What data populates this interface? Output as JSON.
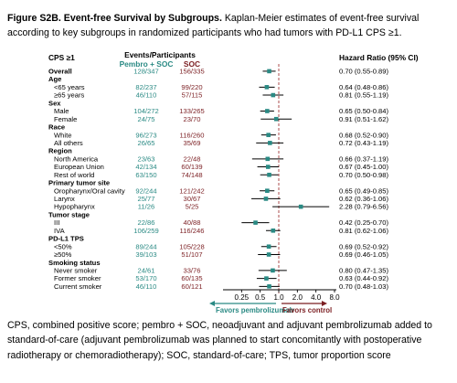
{
  "caption": {
    "title": "Figure S2B. Event-free Survival by Subgroups.",
    "text": "Kaplan-Meier estimates of event-free survival according to key subgroups in randomized participants who had tumors with PD-L1 CPS ≥1."
  },
  "colors": {
    "pembro": "#2a8a84",
    "soc": "#7b1e22",
    "marker": "#2a8a84",
    "ci_line": "#000000",
    "reference_line": "#a33a3a"
  },
  "chart_data": {
    "type": "forest",
    "header": {
      "subgroup": "CPS ≥1",
      "events_title": "Events/Participants",
      "arm1": "Pembro + SOC",
      "arm2": "SOC",
      "hr": "Hazard Ratio (95% CI)"
    },
    "x_axis": {
      "scale": "log",
      "ticks": [
        0.25,
        0.5,
        1.0,
        2.0,
        4.0,
        8.0
      ],
      "tick_labels": [
        "0.25",
        "0.5",
        "1.0",
        "2.0",
        "4.0",
        "8.0"
      ],
      "range": [
        0.125,
        8.0
      ],
      "reference": 1.0,
      "favors_left": "Favors pembrolizumab",
      "favors_right": "Favors control"
    },
    "rows": [
      {
        "label": "Overall",
        "header": true,
        "pembro": "128/347",
        "soc": "156/335",
        "hr_text": "0.70 (0.55-0.89)",
        "hr": 0.7,
        "lo": 0.55,
        "hi": 0.89
      },
      {
        "label": "Age",
        "header": true
      },
      {
        "label": "<65 years",
        "pembro": "82/237",
        "soc": "99/220",
        "hr_text": "0.64 (0.48-0.86)",
        "hr": 0.64,
        "lo": 0.48,
        "hi": 0.86
      },
      {
        "label": "≥65 years",
        "pembro": "46/110",
        "soc": "57/115",
        "hr_text": "0.81 (0.55-1.19)",
        "hr": 0.81,
        "lo": 0.55,
        "hi": 1.19
      },
      {
        "label": "Sex",
        "header": true
      },
      {
        "label": "Male",
        "pembro": "104/272",
        "soc": "133/265",
        "hr_text": "0.65 (0.50-0.84)",
        "hr": 0.65,
        "lo": 0.5,
        "hi": 0.84
      },
      {
        "label": "Female",
        "pembro": "24/75",
        "soc": "23/70",
        "hr_text": "0.91 (0.51-1.62)",
        "hr": 0.91,
        "lo": 0.51,
        "hi": 1.62
      },
      {
        "label": "Race",
        "header": true
      },
      {
        "label": "White",
        "pembro": "96/273",
        "soc": "116/260",
        "hr_text": "0.68 (0.52-0.90)",
        "hr": 0.68,
        "lo": 0.52,
        "hi": 0.9
      },
      {
        "label": "All others",
        "pembro": "26/65",
        "soc": "35/69",
        "hr_text": "0.72 (0.43-1.19)",
        "hr": 0.72,
        "lo": 0.43,
        "hi": 1.19
      },
      {
        "label": "Region",
        "header": true
      },
      {
        "label": "North America",
        "pembro": "23/63",
        "soc": "22/48",
        "hr_text": "0.66 (0.37-1.19)",
        "hr": 0.66,
        "lo": 0.37,
        "hi": 1.19
      },
      {
        "label": "European Union",
        "pembro": "42/134",
        "soc": "60/139",
        "hr_text": "0.67 (0.45-1.00)",
        "hr": 0.67,
        "lo": 0.45,
        "hi": 1.0
      },
      {
        "label": "Rest of world",
        "pembro": "63/150",
        "soc": "74/148",
        "hr_text": "0.70 (0.50-0.98)",
        "hr": 0.7,
        "lo": 0.5,
        "hi": 0.98
      },
      {
        "label": "Primary tumor site",
        "header": true
      },
      {
        "label": "Oropharynx/Oral cavity",
        "pembro": "92/244",
        "soc": "121/242",
        "hr_text": "0.65 (0.49-0.85)",
        "hr": 0.65,
        "lo": 0.49,
        "hi": 0.85
      },
      {
        "label": "Larynx",
        "pembro": "25/77",
        "soc": "30/67",
        "hr_text": "0.62 (0.36-1.06)",
        "hr": 0.62,
        "lo": 0.36,
        "hi": 1.06
      },
      {
        "label": "Hypopharynx",
        "pembro": "11/26",
        "soc": "5/25",
        "hr_text": "2.28 (0.79-6.56)",
        "hr": 2.28,
        "lo": 0.79,
        "hi": 6.56
      },
      {
        "label": "Tumor stage",
        "header": true
      },
      {
        "label": "III",
        "pembro": "22/86",
        "soc": "40/88",
        "hr_text": "0.42 (0.25-0.70)",
        "hr": 0.42,
        "lo": 0.25,
        "hi": 0.7
      },
      {
        "label": "IVA",
        "pembro": "106/259",
        "soc": "116/246",
        "hr_text": "0.81 (0.62-1.06)",
        "hr": 0.81,
        "lo": 0.62,
        "hi": 1.06
      },
      {
        "label": "PD-L1 TPS",
        "header": true
      },
      {
        "label": "<50%",
        "pembro": "89/244",
        "soc": "105/228",
        "hr_text": "0.69 (0.52-0.92)",
        "hr": 0.69,
        "lo": 0.52,
        "hi": 0.92
      },
      {
        "label": "≥50%",
        "pembro": "39/103",
        "soc": "51/107",
        "hr_text": "0.69 (0.46-1.05)",
        "hr": 0.69,
        "lo": 0.46,
        "hi": 1.05
      },
      {
        "label": "Smoking status",
        "header": true
      },
      {
        "label": "Never smoker",
        "pembro": "24/61",
        "soc": "33/76",
        "hr_text": "0.80 (0.47-1.35)",
        "hr": 0.8,
        "lo": 0.47,
        "hi": 1.35
      },
      {
        "label": "Former smoker",
        "pembro": "53/170",
        "soc": "60/135",
        "hr_text": "0.63 (0.44-0.92)",
        "hr": 0.63,
        "lo": 0.44,
        "hi": 0.92
      },
      {
        "label": "Current smoker",
        "pembro": "46/110",
        "soc": "60/121",
        "hr_text": "0.70 (0.48-1.03)",
        "hr": 0.7,
        "lo": 0.48,
        "hi": 1.03
      }
    ]
  },
  "footnote": "CPS, combined positive score; pembro + SOC, neoadjuvant and adjuvant pembrolizumab added to standard-of-care (adjuvant pembrolizumab was planned to start concomitantly with postoperative radiotherapy or chemoradiotherapy); SOC, standard-of-care; TPS, tumor proportion score"
}
